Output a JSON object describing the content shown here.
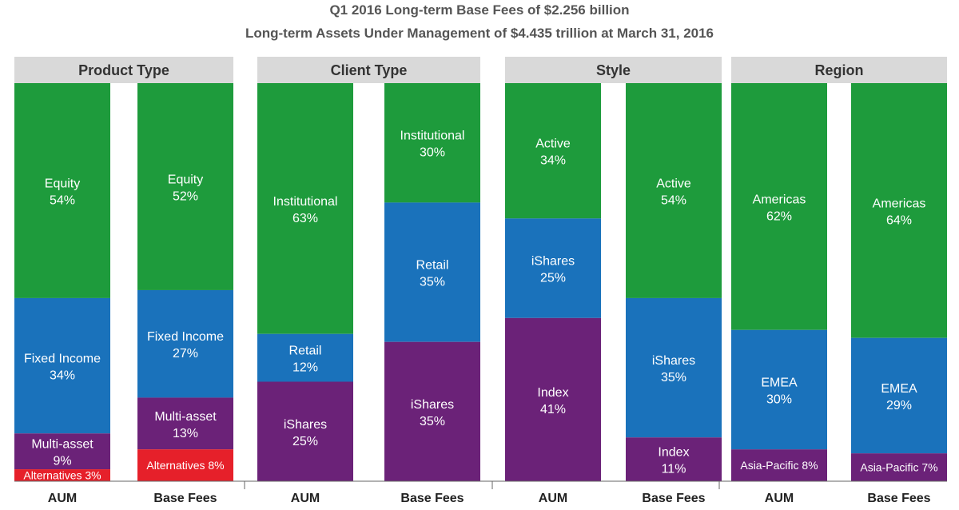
{
  "chart_data": {
    "type": "bar",
    "stacked": true,
    "percent_stacked": true,
    "title": "Q1 2016 Long-term Base Fees of $2.256 billion",
    "subtitle": "Long-term Assets Under Management of $4.435 trillion at March 31, 2016",
    "colors": {
      "green": "#1e9b3c",
      "blue": "#1a72bb",
      "purple": "#6b2278",
      "red": "#e6202a",
      "header_bg": "#d9d9d9"
    },
    "panels": [
      {
        "title": "Product Type",
        "categories": [
          "AUM",
          "Base Fees"
        ],
        "series": [
          {
            "name": "Equity",
            "color": "#1e9b3c",
            "values": [
              54,
              52
            ],
            "labels": [
              "54%",
              "52%"
            ]
          },
          {
            "name": "Fixed Income",
            "color": "#1a72bb",
            "values": [
              34,
              27
            ],
            "labels": [
              "34%",
              "27%"
            ]
          },
          {
            "name": "Multi-asset",
            "color": "#6b2278",
            "values": [
              9,
              13
            ],
            "labels": [
              "9%",
              "13%"
            ]
          },
          {
            "name": "Alternatives",
            "color": "#e6202a",
            "values": [
              3,
              8
            ],
            "labels": [
              "3%",
              "8%"
            ]
          }
        ]
      },
      {
        "title": "Client Type",
        "categories": [
          "AUM",
          "Base Fees"
        ],
        "series": [
          {
            "name": "Institutional",
            "color": "#1e9b3c",
            "values": [
              63,
              30
            ],
            "labels": [
              "63%",
              "30%"
            ]
          },
          {
            "name": "Retail",
            "color": "#1a72bb",
            "values": [
              12,
              35
            ],
            "labels": [
              "12%",
              "35%"
            ]
          },
          {
            "name": "iShares",
            "color": "#6b2278",
            "values": [
              25,
              35
            ],
            "labels": [
              "25%",
              "35%"
            ]
          }
        ]
      },
      {
        "title": "Style",
        "categories": [
          "AUM",
          "Base Fees"
        ],
        "series": [
          {
            "name": "Active",
            "color": "#1e9b3c",
            "values": [
              34,
              54
            ],
            "labels": [
              "34%",
              "54%"
            ]
          },
          {
            "name": "iShares",
            "color": "#1a72bb",
            "values": [
              25,
              35
            ],
            "labels": [
              "25%",
              "35%"
            ]
          },
          {
            "name": "Index",
            "color": "#6b2278",
            "values": [
              41,
              11
            ],
            "labels": [
              "41%",
              "11%"
            ]
          }
        ]
      },
      {
        "title": "Region",
        "categories": [
          "AUM",
          "Base Fees"
        ],
        "series": [
          {
            "name": "Americas",
            "color": "#1e9b3c",
            "values": [
              62,
              64
            ],
            "labels": [
              "62%",
              "64%"
            ]
          },
          {
            "name": "EMEA",
            "color": "#1a72bb",
            "values": [
              30,
              29
            ],
            "labels": [
              "30%",
              "29%"
            ]
          },
          {
            "name": "Asia-Pacific",
            "color": "#6b2278",
            "values": [
              8,
              7
            ],
            "labels": [
              "8%",
              "7%"
            ]
          }
        ]
      }
    ],
    "ylim": [
      0,
      100
    ],
    "grid": false,
    "legend": "none"
  }
}
